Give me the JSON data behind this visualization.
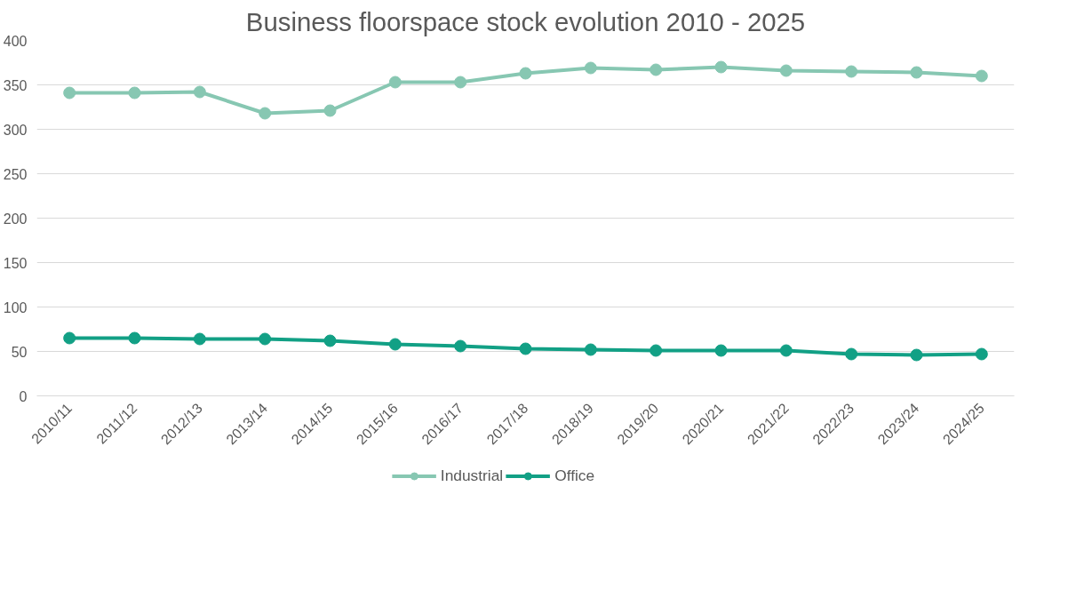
{
  "chart_data": {
    "type": "line",
    "title": "Business floorspace stock evolution 2010 - 2025",
    "categories": [
      "2010/11",
      "2011/12",
      "2012/13",
      "2013/14",
      "2014/15",
      "2015/16",
      "2016/17",
      "2017/18",
      "2018/19",
      "2019/20",
      "2020/21",
      "2021/22",
      "2022/23",
      "2023/24",
      "2024/25"
    ],
    "series": [
      {
        "name": "Industrial",
        "color": "#87c7b2",
        "values": [
          341,
          341,
          342,
          318,
          321,
          353,
          353,
          363,
          369,
          367,
          370,
          366,
          365,
          364,
          360
        ]
      },
      {
        "name": "Office",
        "color": "#12a085",
        "values": [
          65,
          65,
          64,
          64,
          62,
          58,
          56,
          53,
          52,
          51,
          51,
          51,
          47,
          46,
          47
        ]
      }
    ],
    "ylim": [
      0,
      400
    ],
    "yticks": [
      0,
      50,
      100,
      150,
      200,
      250,
      300,
      350,
      400
    ],
    "grid": "y",
    "legend": "bottom",
    "marker": "circle",
    "line_style": "solid"
  }
}
